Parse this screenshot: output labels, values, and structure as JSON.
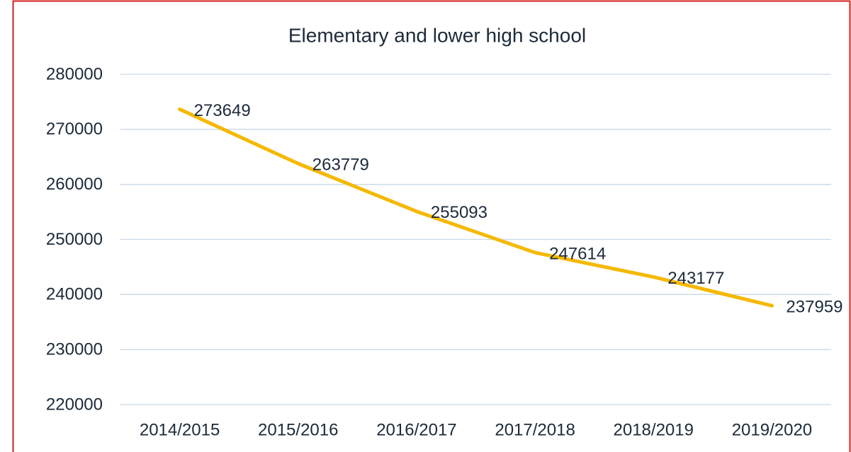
{
  "chart_data": {
    "type": "line",
    "title": "Elementary and lower high school",
    "categories": [
      "2014/2015",
      "2015/2016",
      "2016/2017",
      "2017/2018",
      "2018/2019",
      "2019/2020"
    ],
    "values": [
      273649,
      263779,
      255093,
      247614,
      243177,
      237959
    ],
    "color": "#f5b800",
    "ylim": [
      220000,
      280000
    ],
    "yticks": [
      220000,
      230000,
      240000,
      250000,
      260000,
      270000,
      280000
    ],
    "grid": true
  }
}
